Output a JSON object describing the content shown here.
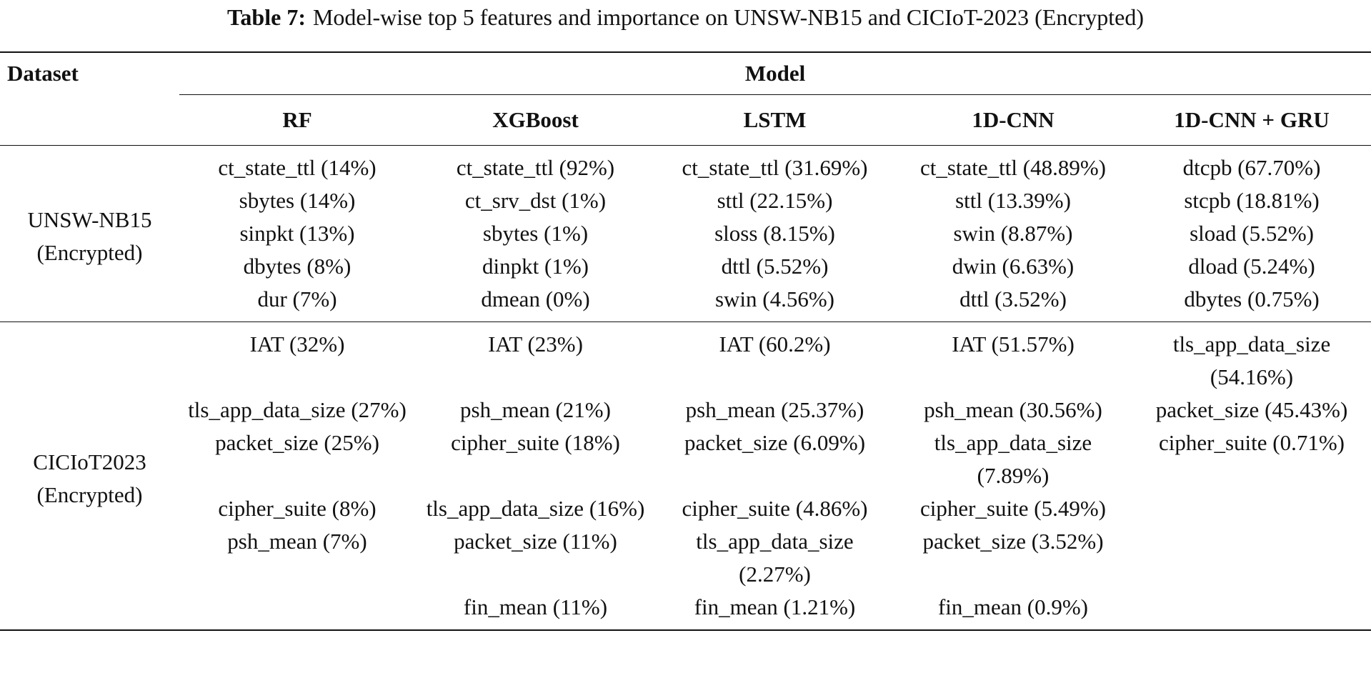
{
  "caption": {
    "label": "Table 7:",
    "text": "Model-wise top 5 features and importance on UNSW-NB15 and CICIoT-2023 (Encrypted)"
  },
  "table": {
    "header": {
      "dataset": "Dataset",
      "model": "Model",
      "models": [
        "RF",
        "XGBoost",
        "LSTM",
        "1D-CNN",
        "1D-CNN + GRU"
      ]
    },
    "groups": [
      {
        "dataset": "UNSW-NB15 (Encrypted)",
        "rows": [
          [
            "ct_state_ttl (14%)",
            "ct_state_ttl (92%)",
            "ct_state_ttl (31.69%)",
            "ct_state_ttl (48.89%)",
            "dtcpb (67.70%)"
          ],
          [
            "sbytes (14%)",
            "ct_srv_dst (1%)",
            "sttl (22.15%)",
            "sttl (13.39%)",
            "stcpb (18.81%)"
          ],
          [
            "sinpkt (13%)",
            "sbytes (1%)",
            "sloss (8.15%)",
            "swin (8.87%)",
            "sload (5.52%)"
          ],
          [
            "dbytes (8%)",
            "dinpkt (1%)",
            "dttl (5.52%)",
            "dwin (6.63%)",
            "dload (5.24%)"
          ],
          [
            "dur (7%)",
            "dmean (0%)",
            "swin (4.56%)",
            "dttl (3.52%)",
            "dbytes (0.75%)"
          ]
        ]
      },
      {
        "dataset": "CICIoT2023 (Encrypted)",
        "rows": [
          [
            "IAT (32%)",
            "IAT (23%)",
            "IAT (60.2%)",
            "IAT (51.57%)",
            "tls_app_data_size (54.16%)"
          ],
          [
            "tls_app_data_size (27%)",
            "psh_mean (21%)",
            "psh_mean (25.37%)",
            "psh_mean (30.56%)",
            "packet_size (45.43%)"
          ],
          [
            "packet_size (25%)",
            "cipher_suite (18%)",
            "packet_size (6.09%)",
            "tls_app_data_size (7.89%)",
            "cipher_suite (0.71%)"
          ],
          [
            "cipher_suite (8%)",
            "tls_app_data_size (16%)",
            "cipher_suite (4.86%)",
            "cipher_suite (5.49%)",
            null
          ],
          [
            "psh_mean (7%)",
            "packet_size (11%)",
            "tls_app_data_size (2.27%)",
            "packet_size (3.52%)",
            null
          ],
          [
            null,
            "fin_mean (11%)",
            "fin_mean (1.21%)",
            "fin_mean (0.9%)",
            null
          ]
        ]
      }
    ]
  }
}
